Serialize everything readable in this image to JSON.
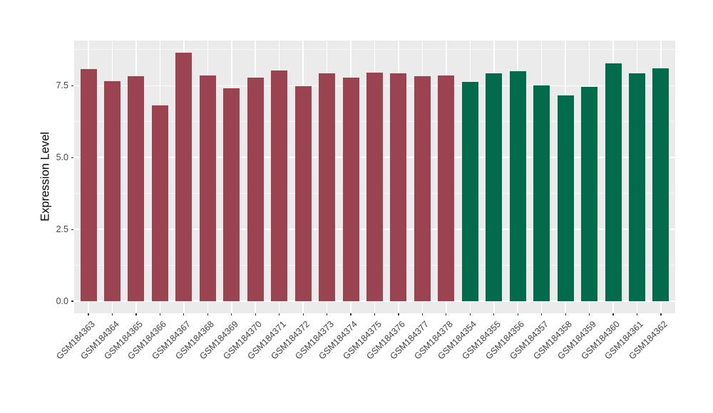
{
  "chart_data": {
    "type": "bar",
    "title": "",
    "xlabel": "",
    "ylabel": "Expression Level",
    "categories": [
      "GSM184363",
      "GSM184364",
      "GSM184365",
      "GSM184366",
      "GSM184367",
      "GSM184368",
      "GSM184369",
      "GSM184370",
      "GSM184371",
      "GSM184372",
      "GSM184373",
      "GSM184374",
      "GSM184375",
      "GSM184376",
      "GSM184377",
      "GSM184378",
      "GSM184354",
      "GSM184355",
      "GSM184356",
      "GSM184357",
      "GSM184358",
      "GSM184359",
      "GSM184360",
      "GSM184361",
      "GSM184362"
    ],
    "values": [
      8.08,
      7.66,
      7.84,
      6.82,
      8.65,
      7.85,
      7.42,
      7.77,
      8.02,
      7.49,
      7.94,
      7.77,
      7.96,
      7.94,
      7.84,
      7.85,
      7.63,
      7.93,
      8.0,
      7.52,
      7.15,
      7.45,
      8.27,
      7.93,
      8.1
    ],
    "bar_groups": [
      1,
      1,
      1,
      1,
      1,
      1,
      1,
      1,
      1,
      1,
      1,
      1,
      1,
      1,
      1,
      1,
      2,
      2,
      2,
      2,
      2,
      2,
      2,
      2,
      2
    ],
    "group_colors": {
      "1": "#9B4350",
      "2": "#016B4C"
    },
    "ytick_labels": [
      "0.0",
      "2.5",
      "5.0",
      "7.5"
    ],
    "ytick_values": [
      0,
      2.5,
      5.0,
      7.5
    ],
    "minor_gridlines": [
      1.25,
      3.75,
      6.25,
      8.75
    ],
    "ylim": [
      -0.41,
      9.06
    ],
    "grid": "on",
    "legend": "none",
    "panel_background": "#EBEBEB",
    "gridline_color": "#FFFFFF",
    "axis_text_color": "#404040"
  }
}
